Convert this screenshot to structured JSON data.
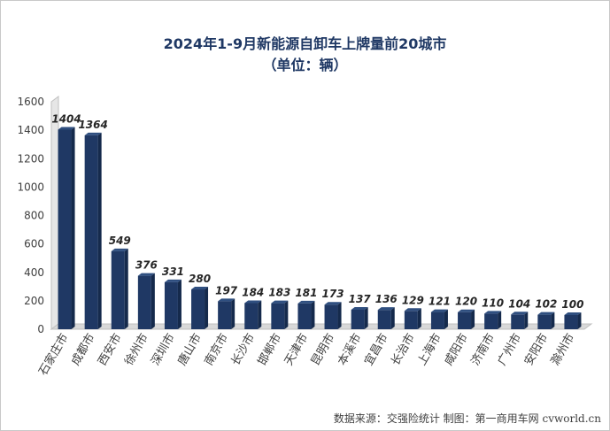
{
  "chart_data": {
    "type": "bar",
    "title": "2024年1-9月新能源自卸车上牌量前20城市",
    "subtitle": "（单位：辆）",
    "categories": [
      "石家庄市",
      "成都市",
      "西安市",
      "徐州市",
      "深圳市",
      "唐山市",
      "南京市",
      "长沙市",
      "邯郸市",
      "天津市",
      "昆明市",
      "本溪市",
      "宜昌市",
      "长治市",
      "上海市",
      "咸阳市",
      "济南市",
      "广州市",
      "安阳市",
      "滁州市"
    ],
    "values": [
      1404,
      1364,
      549,
      376,
      331,
      280,
      197,
      184,
      183,
      181,
      173,
      137,
      136,
      129,
      121,
      120,
      110,
      104,
      102,
      100
    ],
    "ylim": [
      0,
      1600
    ],
    "yticks": [
      0,
      200,
      400,
      600,
      800,
      1000,
      1200,
      1400,
      1600
    ],
    "grid": false,
    "legend": "none",
    "bar_color": "#1f3864",
    "bar_side_color": "#152a4c",
    "bar_top_color": "#2f4f80"
  },
  "footer": {
    "source": "数据来源：交强险统计  制图：第一商用车网 cvworld.cn"
  }
}
